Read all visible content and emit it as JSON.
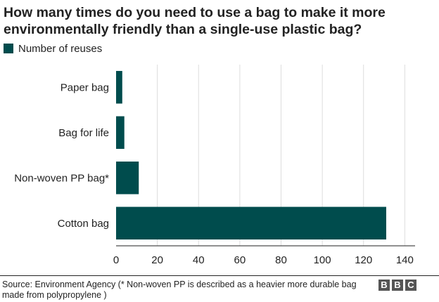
{
  "title": "How many times do you need to use a bag to make it more environmentally friendly than a single-use plastic bag?",
  "legend": {
    "label": "Number of reuses",
    "color": "#004c4d"
  },
  "chart_data": {
    "type": "bar",
    "orientation": "horizontal",
    "categories": [
      "Paper bag",
      "Bag for life",
      "Non-woven PP bag*",
      "Cotton bag"
    ],
    "series": [
      {
        "name": "Number of reuses",
        "values": [
          3,
          4,
          11,
          131
        ],
        "color": "#004c4d"
      }
    ],
    "xlim": [
      0,
      145
    ],
    "xticks": [
      0,
      20,
      40,
      60,
      80,
      100,
      120,
      140
    ],
    "grid": true,
    "legend_position": "top-left"
  },
  "source": "Source: Environment Agency (* Non-woven PP is described as a heavier more durable bag made from polypropylene )",
  "logo": {
    "letters": [
      "B",
      "B",
      "C"
    ],
    "color": "#555555"
  }
}
